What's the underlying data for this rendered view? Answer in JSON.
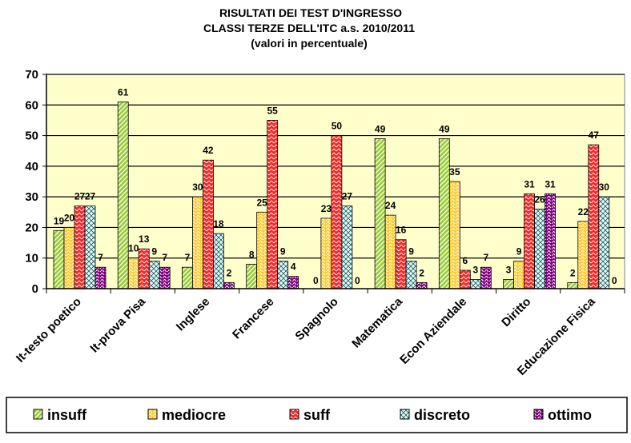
{
  "chart_data": {
    "type": "bar",
    "title": [
      "RISULTATI DEI TEST D'INGRESSO",
      "CLASSI TERZE DELL'ITC      a.s. 2010/2011",
      "(valori in percentuale)"
    ],
    "xlabel": "",
    "ylabel": "",
    "ylim": [
      0,
      70
    ],
    "yticks": [
      0,
      10,
      20,
      30,
      40,
      50,
      60,
      70
    ],
    "grid": true,
    "legend_position": "bottom",
    "plot_background": "#ffffcc",
    "categories": [
      "It-testo poetico",
      "It-prova Pisa",
      "Inglese",
      "Francese",
      "Spagnolo",
      "Matematica",
      "Econ Aziendale",
      "Diritto",
      "Educazione Fisica"
    ],
    "series": [
      {
        "name": "insuff",
        "color": "#99cc33",
        "values": [
          19,
          61,
          7,
          8,
          0,
          49,
          49,
          3,
          2
        ]
      },
      {
        "name": "mediocre",
        "color": "#ffcc33",
        "values": [
          20,
          10,
          30,
          25,
          23,
          24,
          35,
          9,
          22
        ]
      },
      {
        "name": "suff",
        "color": "#ff3333",
        "values": [
          27,
          13,
          42,
          55,
          50,
          16,
          6,
          31,
          47
        ]
      },
      {
        "name": "discreto",
        "color": "#ccffff",
        "values": [
          27,
          9,
          18,
          9,
          27,
          9,
          3,
          26,
          30
        ]
      },
      {
        "name": "ottimo",
        "color": "#800080",
        "values": [
          7,
          7,
          2,
          4,
          0,
          2,
          7,
          31,
          0
        ]
      }
    ]
  }
}
